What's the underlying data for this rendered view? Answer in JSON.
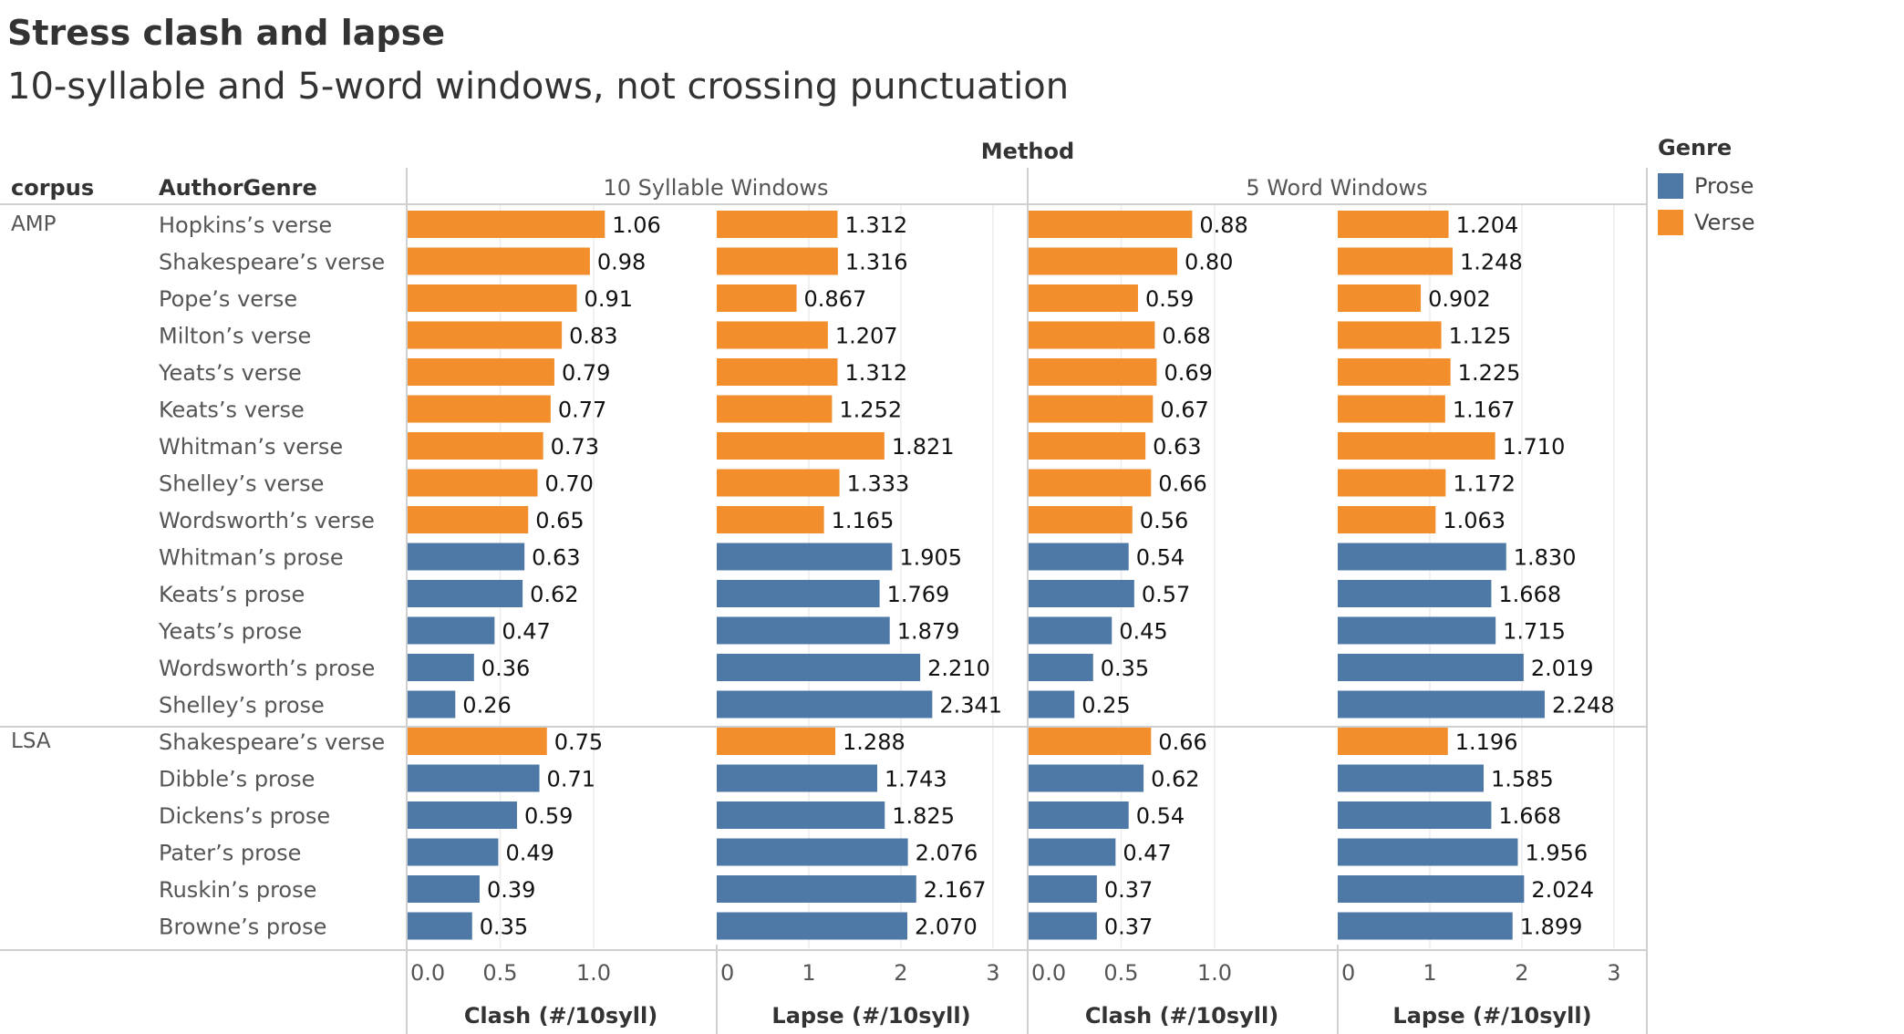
{
  "title": "Stress clash and lapse",
  "subtitle": "10-syllable and 5-word windows, not crossing punctuation",
  "headers": {
    "method": "Method",
    "corpus": "corpus",
    "author_genre": "AuthorGenre",
    "methods": [
      "10 Syllable Windows",
      "5 Word Windows"
    ]
  },
  "legend": {
    "title": "Genre",
    "items": [
      {
        "label": "Prose",
        "color": "#4e79a7"
      },
      {
        "label": "Verse",
        "color": "#f28e2b"
      }
    ]
  },
  "chart_data": {
    "type": "bar",
    "orientation": "horizontal",
    "panels": [
      {
        "method": "10 Syllable Windows",
        "axis_label": "Clash (#/10syll)",
        "xlim": [
          0,
          1.2
        ],
        "ticks": [
          "0.0",
          "0.5",
          "1.0"
        ],
        "tick_values": [
          0,
          0.5,
          1.0
        ],
        "measure": "clash10",
        "decimals": 2
      },
      {
        "method": "10 Syllable Windows",
        "axis_label": "Lapse (#/10syll)",
        "xlim": [
          0,
          3.1
        ],
        "ticks": [
          "0",
          "1",
          "2",
          "3"
        ],
        "tick_values": [
          0,
          1,
          2,
          3
        ],
        "measure": "lapse10",
        "decimals": 3
      },
      {
        "method": "5 Word Windows",
        "axis_label": "Clash (#/10syll)",
        "xlim": [
          0,
          1.2
        ],
        "ticks": [
          "0.0",
          "0.5",
          "1.0"
        ],
        "tick_values": [
          0,
          0.5,
          1.0
        ],
        "measure": "clash5",
        "decimals": 2
      },
      {
        "method": "5 Word Windows",
        "axis_label": "Lapse (#/10syll)",
        "xlim": [
          0,
          3.1
        ],
        "ticks": [
          "0",
          "1",
          "2",
          "3"
        ],
        "tick_values": [
          0,
          1,
          2,
          3
        ],
        "measure": "lapse5",
        "decimals": 3
      }
    ],
    "groups": [
      {
        "corpus": "AMP",
        "rows": [
          {
            "label": "Hopkins’s verse",
            "genre": "Verse",
            "clash10": 1.06,
            "lapse10": 1.312,
            "clash5": 0.88,
            "lapse5": 1.204
          },
          {
            "label": "Shakespeare’s verse",
            "genre": "Verse",
            "clash10": 0.98,
            "lapse10": 1.316,
            "clash5": 0.8,
            "lapse5": 1.248
          },
          {
            "label": "Pope’s verse",
            "genre": "Verse",
            "clash10": 0.91,
            "lapse10": 0.867,
            "clash5": 0.59,
            "lapse5": 0.902
          },
          {
            "label": "Milton’s verse",
            "genre": "Verse",
            "clash10": 0.83,
            "lapse10": 1.207,
            "clash5": 0.68,
            "lapse5": 1.125
          },
          {
            "label": "Yeats’s verse",
            "genre": "Verse",
            "clash10": 0.79,
            "lapse10": 1.312,
            "clash5": 0.69,
            "lapse5": 1.225
          },
          {
            "label": "Keats’s verse",
            "genre": "Verse",
            "clash10": 0.77,
            "lapse10": 1.252,
            "clash5": 0.67,
            "lapse5": 1.167
          },
          {
            "label": "Whitman’s verse",
            "genre": "Verse",
            "clash10": 0.73,
            "lapse10": 1.821,
            "clash5": 0.63,
            "lapse5": 1.71
          },
          {
            "label": "Shelley’s verse",
            "genre": "Verse",
            "clash10": 0.7,
            "lapse10": 1.333,
            "clash5": 0.66,
            "lapse5": 1.172
          },
          {
            "label": "Wordsworth’s verse",
            "genre": "Verse",
            "clash10": 0.65,
            "lapse10": 1.165,
            "clash5": 0.56,
            "lapse5": 1.063
          },
          {
            "label": "Whitman’s prose",
            "genre": "Prose",
            "clash10": 0.63,
            "lapse10": 1.905,
            "clash5": 0.54,
            "lapse5": 1.83
          },
          {
            "label": "Keats’s prose",
            "genre": "Prose",
            "clash10": 0.62,
            "lapse10": 1.769,
            "clash5": 0.57,
            "lapse5": 1.668
          },
          {
            "label": "Yeats’s prose",
            "genre": "Prose",
            "clash10": 0.47,
            "lapse10": 1.879,
            "clash5": 0.45,
            "lapse5": 1.715
          },
          {
            "label": "Wordsworth’s prose",
            "genre": "Prose",
            "clash10": 0.36,
            "lapse10": 2.21,
            "clash5": 0.35,
            "lapse5": 2.019
          },
          {
            "label": "Shelley’s prose",
            "genre": "Prose",
            "clash10": 0.26,
            "lapse10": 2.341,
            "clash5": 0.25,
            "lapse5": 2.248
          }
        ]
      },
      {
        "corpus": "LSA",
        "rows": [
          {
            "label": "Shakespeare’s verse",
            "genre": "Verse",
            "clash10": 0.75,
            "lapse10": 1.288,
            "clash5": 0.66,
            "lapse5": 1.196
          },
          {
            "label": "Dibble’s prose",
            "genre": "Prose",
            "clash10": 0.71,
            "lapse10": 1.743,
            "clash5": 0.62,
            "lapse5": 1.585
          },
          {
            "label": "Dickens’s prose",
            "genre": "Prose",
            "clash10": 0.59,
            "lapse10": 1.825,
            "clash5": 0.54,
            "lapse5": 1.668
          },
          {
            "label": "Pater’s prose",
            "genre": "Prose",
            "clash10": 0.49,
            "lapse10": 2.076,
            "clash5": 0.47,
            "lapse5": 1.956
          },
          {
            "label": "Ruskin’s prose",
            "genre": "Prose",
            "clash10": 0.39,
            "lapse10": 2.167,
            "clash5": 0.37,
            "lapse5": 2.024
          },
          {
            "label": "Browne’s prose",
            "genre": "Prose",
            "clash10": 0.35,
            "lapse10": 2.07,
            "clash5": 0.37,
            "lapse5": 1.899
          }
        ]
      }
    ],
    "colors": {
      "Prose": "#4e79a7",
      "Verse": "#f28e2b"
    },
    "grid": true,
    "legend_position": "right"
  }
}
